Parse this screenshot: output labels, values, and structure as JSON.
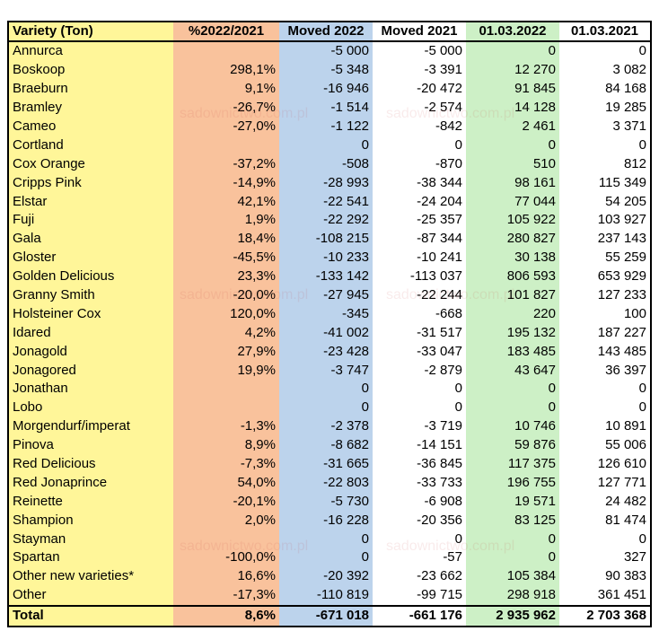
{
  "table": {
    "headers": [
      "Variety (Ton)",
      "%2022/2021",
      "Moved 2022",
      "Moved 2021",
      "01.03.2022",
      "01.03.2021"
    ],
    "rows": [
      [
        "Annurca",
        "",
        "-5 000",
        "-5 000",
        "0",
        "0"
      ],
      [
        "Boskoop",
        "298,1%",
        "-5 348",
        "-3 391",
        "12 270",
        "3 082"
      ],
      [
        "Braeburn",
        "9,1%",
        "-16 946",
        "-20 472",
        "91 845",
        "84 168"
      ],
      [
        "Bramley",
        "-26,7%",
        "-1 514",
        "-2 574",
        "14 128",
        "19 285"
      ],
      [
        "Cameo",
        "-27,0%",
        "-1 122",
        "-842",
        "2 461",
        "3 371"
      ],
      [
        "Cortland",
        "",
        "0",
        "0",
        "0",
        "0"
      ],
      [
        "Cox Orange",
        "-37,2%",
        "-508",
        "-870",
        "510",
        "812"
      ],
      [
        "Cripps Pink",
        "-14,9%",
        "-28 993",
        "-38 344",
        "98 161",
        "115 349"
      ],
      [
        "Elstar",
        "42,1%",
        "-22 541",
        "-24 204",
        "77 044",
        "54 205"
      ],
      [
        "Fuji",
        "1,9%",
        "-22 292",
        "-25 357",
        "105 922",
        "103 927"
      ],
      [
        "Gala",
        "18,4%",
        "-108 215",
        "-87 344",
        "280 827",
        "237 143"
      ],
      [
        "Gloster",
        "-45,5%",
        "-10 233",
        "-10 241",
        "30 138",
        "55 259"
      ],
      [
        "Golden Delicious",
        "23,3%",
        "-133 142",
        "-113 037",
        "806 593",
        "653 929"
      ],
      [
        "Granny Smith",
        "-20,0%",
        "-27 945",
        "-22 244",
        "101 827",
        "127 233"
      ],
      [
        "Holsteiner Cox",
        "120,0%",
        "-345",
        "-668",
        "220",
        "100"
      ],
      [
        "Idared",
        "4,2%",
        "-41 002",
        "-31 517",
        "195 132",
        "187 227"
      ],
      [
        "Jonagold",
        "27,9%",
        "-23 428",
        "-33 047",
        "183 485",
        "143 485"
      ],
      [
        "Jonagored",
        "19,9%",
        "-3 747",
        "-2 879",
        "43 647",
        "36 397"
      ],
      [
        "Jonathan",
        "",
        "0",
        "0",
        "0",
        "0"
      ],
      [
        "Lobo",
        "",
        "0",
        "0",
        "0",
        "0"
      ],
      [
        "Morgendurf/imperat",
        "-1,3%",
        "-2 378",
        "-3 719",
        "10 746",
        "10 891"
      ],
      [
        "Pinova",
        "8,9%",
        "-8 682",
        "-14 151",
        "59 876",
        "55 006"
      ],
      [
        "Red Delicious",
        "-7,3%",
        "-31 665",
        "-36 845",
        "117 375",
        "126 610"
      ],
      [
        "Red Jonaprince",
        "54,0%",
        "-22 803",
        "-33 733",
        "196 755",
        "127 771"
      ],
      [
        "Reinette",
        "-20,1%",
        "-5 730",
        "-6 908",
        "19 571",
        "24 482"
      ],
      [
        "Shampion",
        "2,0%",
        "-16 228",
        "-20 356",
        "83 125",
        "81 474"
      ],
      [
        "Stayman",
        "",
        "0",
        "0",
        "0",
        "0"
      ],
      [
        "Spartan",
        "-100,0%",
        "0",
        "-57",
        "0",
        "327"
      ],
      [
        "Other new varieties*",
        "16,6%",
        "-20 392",
        "-23 662",
        "105 384",
        "90 383"
      ],
      [
        "Other",
        "-17,3%",
        "-110 819",
        "-99 715",
        "298 918",
        "361 451"
      ]
    ],
    "total": [
      "Total",
      "8,6%",
      "-671 018",
      "-661 176",
      "2 935 962",
      "2 703 368"
    ]
  },
  "column_colors": [
    "#fff699",
    "#f9c29c",
    "#bcd3ec",
    "#ffffff",
    "#cdf0c6",
    "#ffffff"
  ],
  "watermark": "sadownictwo.com.pl"
}
